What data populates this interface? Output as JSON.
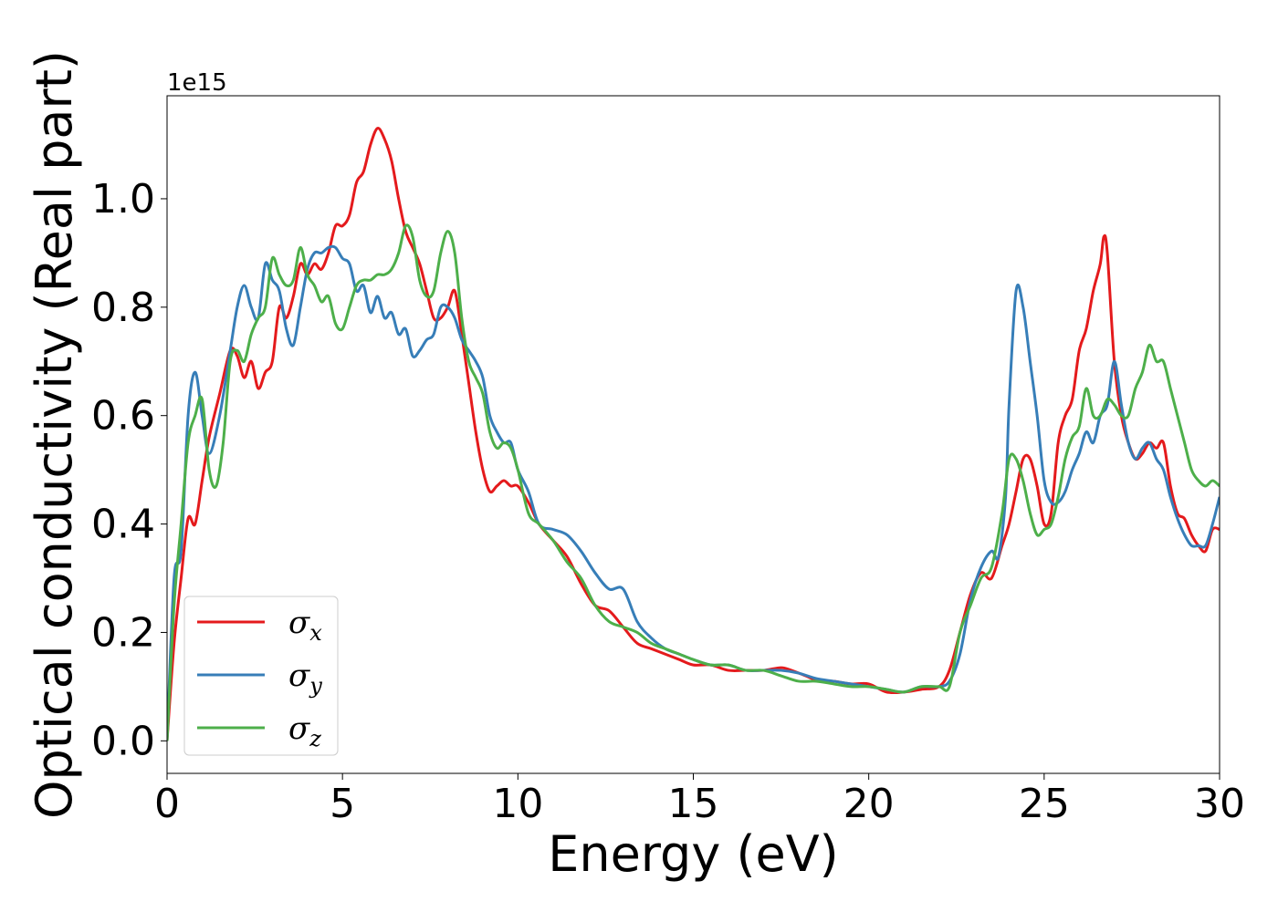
{
  "chart_data": {
    "type": "line",
    "xlabel": "Energy (eV)",
    "ylabel": "Optical conductivity (Real part)",
    "y_offset_text": "1e15",
    "xlim": [
      0,
      30
    ],
    "ylim": [
      -0.06,
      1.19
    ],
    "x_ticks": [
      0,
      5,
      10,
      15,
      20,
      25,
      30
    ],
    "x_tick_labels": [
      "0",
      "5",
      "10",
      "15",
      "20",
      "25",
      "30"
    ],
    "y_ticks": [
      0.0,
      0.2,
      0.4,
      0.6,
      0.8,
      1.0
    ],
    "y_tick_labels": [
      "0.0",
      "0.2",
      "0.4",
      "0.6",
      "0.8",
      "1.0"
    ],
    "grid": false,
    "legend_position": "lower-left",
    "series": [
      {
        "name": "σx",
        "symbol": "σ",
        "subscript": "x",
        "color": "#e41a1c",
        "x": [
          0,
          0.2,
          0.4,
          0.6,
          0.8,
          1.0,
          1.2,
          1.5,
          1.8,
          2.0,
          2.2,
          2.4,
          2.6,
          2.8,
          3.0,
          3.2,
          3.4,
          3.6,
          3.8,
          4.0,
          4.2,
          4.4,
          4.6,
          4.8,
          5.0,
          5.2,
          5.4,
          5.6,
          5.8,
          6.0,
          6.2,
          6.4,
          6.6,
          6.8,
          7.0,
          7.2,
          7.4,
          7.6,
          7.8,
          8.0,
          8.2,
          8.4,
          8.6,
          8.8,
          9.0,
          9.2,
          9.4,
          9.6,
          9.8,
          10.0,
          10.3,
          10.6,
          11.0,
          11.4,
          11.8,
          12.2,
          12.6,
          13.0,
          13.4,
          13.8,
          14.2,
          14.6,
          15.0,
          15.5,
          16.0,
          16.5,
          17.0,
          17.5,
          17.8,
          18.2,
          18.6,
          19.0,
          19.5,
          20.0,
          20.5,
          21.0,
          21.5,
          22.0,
          22.3,
          22.6,
          22.9,
          23.2,
          23.5,
          23.8,
          24.0,
          24.2,
          24.4,
          24.6,
          24.8,
          25.0,
          25.2,
          25.4,
          25.6,
          25.8,
          26.0,
          26.2,
          26.4,
          26.6,
          26.7,
          26.8,
          27.0,
          27.2,
          27.4,
          27.6,
          27.8,
          28.0,
          28.2,
          28.4,
          28.6,
          28.8,
          29.0,
          29.2,
          29.4,
          29.6,
          29.8,
          30.0
        ],
        "y": [
          0.0,
          0.18,
          0.3,
          0.41,
          0.4,
          0.48,
          0.56,
          0.64,
          0.72,
          0.71,
          0.67,
          0.7,
          0.65,
          0.68,
          0.7,
          0.8,
          0.78,
          0.82,
          0.88,
          0.86,
          0.88,
          0.87,
          0.9,
          0.95,
          0.95,
          0.97,
          1.03,
          1.05,
          1.1,
          1.13,
          1.11,
          1.07,
          1.0,
          0.94,
          0.91,
          0.88,
          0.83,
          0.78,
          0.78,
          0.8,
          0.83,
          0.75,
          0.66,
          0.57,
          0.5,
          0.46,
          0.47,
          0.48,
          0.47,
          0.47,
          0.44,
          0.4,
          0.37,
          0.34,
          0.29,
          0.25,
          0.24,
          0.21,
          0.18,
          0.17,
          0.16,
          0.15,
          0.14,
          0.14,
          0.13,
          0.13,
          0.13,
          0.135,
          0.13,
          0.12,
          0.11,
          0.11,
          0.105,
          0.105,
          0.09,
          0.09,
          0.095,
          0.1,
          0.13,
          0.2,
          0.27,
          0.31,
          0.3,
          0.36,
          0.4,
          0.46,
          0.52,
          0.52,
          0.47,
          0.4,
          0.42,
          0.55,
          0.6,
          0.63,
          0.72,
          0.76,
          0.83,
          0.88,
          0.93,
          0.9,
          0.7,
          0.6,
          0.55,
          0.52,
          0.53,
          0.55,
          0.54,
          0.55,
          0.47,
          0.42,
          0.41,
          0.38,
          0.36,
          0.35,
          0.39,
          0.39
        ]
      },
      {
        "name": "σy",
        "symbol": "σ",
        "subscript": "y",
        "color": "#377eb8",
        "x": [
          0,
          0.2,
          0.4,
          0.6,
          0.8,
          1.0,
          1.2,
          1.5,
          1.8,
          2.0,
          2.2,
          2.4,
          2.6,
          2.8,
          3.0,
          3.2,
          3.4,
          3.6,
          3.8,
          4.0,
          4.2,
          4.4,
          4.6,
          4.8,
          5.0,
          5.2,
          5.4,
          5.6,
          5.8,
          6.0,
          6.2,
          6.4,
          6.6,
          6.8,
          7.0,
          7.2,
          7.4,
          7.6,
          7.8,
          8.0,
          8.2,
          8.4,
          8.6,
          8.8,
          9.0,
          9.2,
          9.4,
          9.6,
          9.8,
          10.0,
          10.3,
          10.6,
          11.0,
          11.4,
          11.8,
          12.2,
          12.6,
          13.0,
          13.4,
          13.8,
          14.2,
          14.6,
          15.0,
          15.5,
          16.0,
          16.5,
          17.0,
          17.5,
          18.0,
          18.5,
          19.0,
          19.5,
          20.0,
          20.5,
          21.0,
          21.5,
          22.0,
          22.3,
          22.6,
          22.9,
          23.2,
          23.5,
          23.7,
          23.9,
          24.0,
          24.2,
          24.4,
          24.6,
          24.8,
          25.0,
          25.2,
          25.4,
          25.6,
          25.8,
          26.0,
          26.2,
          26.4,
          26.6,
          26.8,
          27.0,
          27.2,
          27.4,
          27.6,
          27.8,
          28.0,
          28.2,
          28.4,
          28.6,
          28.8,
          29.0,
          29.2,
          29.4,
          29.6,
          29.8,
          30.0
        ],
        "y": [
          0.0,
          0.3,
          0.35,
          0.6,
          0.68,
          0.6,
          0.53,
          0.6,
          0.72,
          0.8,
          0.84,
          0.8,
          0.78,
          0.88,
          0.85,
          0.83,
          0.76,
          0.73,
          0.8,
          0.87,
          0.9,
          0.9,
          0.91,
          0.91,
          0.89,
          0.88,
          0.83,
          0.84,
          0.79,
          0.82,
          0.78,
          0.79,
          0.75,
          0.76,
          0.71,
          0.72,
          0.74,
          0.75,
          0.8,
          0.8,
          0.78,
          0.74,
          0.72,
          0.7,
          0.67,
          0.6,
          0.57,
          0.55,
          0.55,
          0.5,
          0.46,
          0.4,
          0.39,
          0.38,
          0.35,
          0.31,
          0.28,
          0.28,
          0.22,
          0.19,
          0.17,
          0.16,
          0.15,
          0.14,
          0.14,
          0.13,
          0.13,
          0.13,
          0.125,
          0.115,
          0.11,
          0.105,
          0.1,
          0.095,
          0.09,
          0.1,
          0.1,
          0.11,
          0.16,
          0.26,
          0.32,
          0.35,
          0.34,
          0.45,
          0.62,
          0.83,
          0.8,
          0.7,
          0.6,
          0.48,
          0.44,
          0.44,
          0.46,
          0.5,
          0.53,
          0.57,
          0.55,
          0.6,
          0.62,
          0.7,
          0.62,
          0.55,
          0.52,
          0.54,
          0.55,
          0.52,
          0.5,
          0.45,
          0.41,
          0.38,
          0.36,
          0.36,
          0.36,
          0.4,
          0.45
        ]
      },
      {
        "name": "σz",
        "symbol": "σ",
        "subscript": "z",
        "color": "#4daf4a",
        "x": [
          0,
          0.2,
          0.4,
          0.6,
          0.8,
          1.0,
          1.2,
          1.4,
          1.6,
          1.8,
          2.0,
          2.2,
          2.4,
          2.6,
          2.8,
          3.0,
          3.2,
          3.4,
          3.6,
          3.8,
          4.0,
          4.2,
          4.4,
          4.6,
          4.8,
          5.0,
          5.2,
          5.4,
          5.6,
          5.8,
          6.0,
          6.2,
          6.4,
          6.6,
          6.8,
          7.0,
          7.2,
          7.4,
          7.6,
          7.8,
          8.0,
          8.2,
          8.4,
          8.6,
          8.8,
          9.0,
          9.2,
          9.4,
          9.6,
          9.8,
          10.0,
          10.3,
          10.6,
          11.0,
          11.4,
          11.8,
          12.2,
          12.6,
          13.0,
          13.4,
          13.8,
          14.2,
          14.6,
          15.0,
          15.5,
          16.0,
          16.5,
          17.0,
          17.5,
          18.0,
          18.5,
          19.0,
          19.5,
          20.0,
          20.5,
          21.0,
          21.5,
          22.0,
          22.3,
          22.6,
          22.9,
          23.2,
          23.5,
          23.8,
          24.0,
          24.2,
          24.4,
          24.6,
          24.8,
          25.0,
          25.2,
          25.4,
          25.6,
          25.8,
          26.0,
          26.2,
          26.4,
          26.6,
          26.8,
          27.0,
          27.2,
          27.4,
          27.6,
          27.8,
          28.0,
          28.2,
          28.4,
          28.6,
          28.8,
          29.0,
          29.2,
          29.4,
          29.6,
          29.8,
          30.0
        ],
        "y": [
          0.0,
          0.25,
          0.4,
          0.55,
          0.6,
          0.63,
          0.5,
          0.47,
          0.55,
          0.7,
          0.72,
          0.7,
          0.75,
          0.78,
          0.8,
          0.89,
          0.86,
          0.84,
          0.85,
          0.91,
          0.86,
          0.84,
          0.81,
          0.82,
          0.77,
          0.76,
          0.8,
          0.84,
          0.85,
          0.85,
          0.86,
          0.86,
          0.87,
          0.9,
          0.95,
          0.93,
          0.85,
          0.82,
          0.83,
          0.9,
          0.94,
          0.9,
          0.78,
          0.7,
          0.67,
          0.64,
          0.57,
          0.54,
          0.55,
          0.54,
          0.5,
          0.42,
          0.4,
          0.37,
          0.33,
          0.3,
          0.25,
          0.22,
          0.21,
          0.2,
          0.18,
          0.17,
          0.16,
          0.15,
          0.14,
          0.14,
          0.13,
          0.13,
          0.12,
          0.11,
          0.11,
          0.105,
          0.1,
          0.1,
          0.095,
          0.09,
          0.1,
          0.1,
          0.1,
          0.2,
          0.25,
          0.3,
          0.32,
          0.42,
          0.52,
          0.52,
          0.48,
          0.42,
          0.38,
          0.39,
          0.4,
          0.45,
          0.52,
          0.56,
          0.58,
          0.65,
          0.6,
          0.6,
          0.63,
          0.62,
          0.6,
          0.6,
          0.65,
          0.68,
          0.73,
          0.7,
          0.7,
          0.65,
          0.6,
          0.55,
          0.5,
          0.48,
          0.47,
          0.48,
          0.47
        ]
      }
    ]
  }
}
